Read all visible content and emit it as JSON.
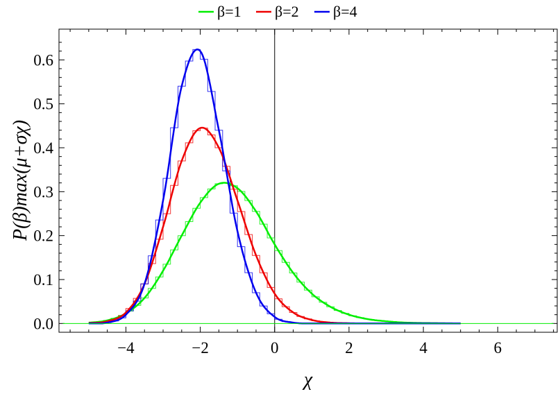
{
  "chart_data": {
    "type": "line",
    "title": "",
    "xlabel": "χ",
    "ylabel": "P(β)max(μ+σχ)",
    "xlim": [
      -5.8,
      7.6
    ],
    "ylim": [
      -0.02,
      0.67
    ],
    "x_ticks": [
      -4,
      -2,
      0,
      2,
      4,
      6
    ],
    "x_tick_labels": [
      "−4",
      "−2",
      "0",
      "2",
      "4",
      "6"
    ],
    "y_ticks": [
      0.0,
      0.1,
      0.2,
      0.3,
      0.4,
      0.5,
      0.6
    ],
    "y_tick_labels": [
      "0.0",
      "0.1",
      "0.2",
      "0.3",
      "0.4",
      "0.5",
      "0.6"
    ],
    "grid": false,
    "legend_position": "top-center",
    "series": [
      {
        "name": "β=1",
        "color": "#00ee00",
        "x": [
          -5.0,
          -4.5,
          -4.0,
          -3.5,
          -3.0,
          -2.5,
          -2.0,
          -1.5,
          -1.0,
          -0.5,
          0.0,
          0.5,
          1.0,
          1.5,
          2.0,
          2.5,
          3.0,
          3.5,
          4.0,
          4.5,
          5.0
        ],
        "y": [
          0.002,
          0.007,
          0.023,
          0.058,
          0.12,
          0.2,
          0.275,
          0.318,
          0.308,
          0.255,
          0.18,
          0.115,
          0.068,
          0.038,
          0.02,
          0.01,
          0.005,
          0.002,
          0.001,
          0.0005,
          0.0002
        ]
      },
      {
        "name": "β=2",
        "color": "#ee0000",
        "x": [
          -5.0,
          -4.5,
          -4.0,
          -3.5,
          -3.0,
          -2.5,
          -2.0,
          -1.5,
          -1.0,
          -0.5,
          0.0,
          0.5,
          1.0,
          1.5,
          2.0,
          2.5,
          3.0,
          3.5,
          4.0,
          4.5,
          5.0
        ],
        "y": [
          0.001,
          0.005,
          0.025,
          0.09,
          0.22,
          0.37,
          0.445,
          0.4,
          0.28,
          0.155,
          0.068,
          0.025,
          0.008,
          0.002,
          0.0005,
          0.0001,
          0,
          0,
          0,
          0,
          0
        ]
      },
      {
        "name": "β=4",
        "color": "#0000ee",
        "x": [
          -5.0,
          -4.5,
          -4.0,
          -3.5,
          -3.0,
          -2.5,
          -2.0,
          -1.5,
          -1.0,
          -0.5,
          0.0,
          0.5,
          1.0,
          1.5,
          2.0,
          2.5,
          3.0,
          3.5,
          4.0,
          4.5,
          5.0
        ],
        "y": [
          0.0,
          0.002,
          0.02,
          0.09,
          0.28,
          0.54,
          0.62,
          0.44,
          0.21,
          0.07,
          0.015,
          0.002,
          0.0,
          0,
          0,
          0,
          0,
          0,
          0,
          0,
          0
        ]
      }
    ]
  }
}
